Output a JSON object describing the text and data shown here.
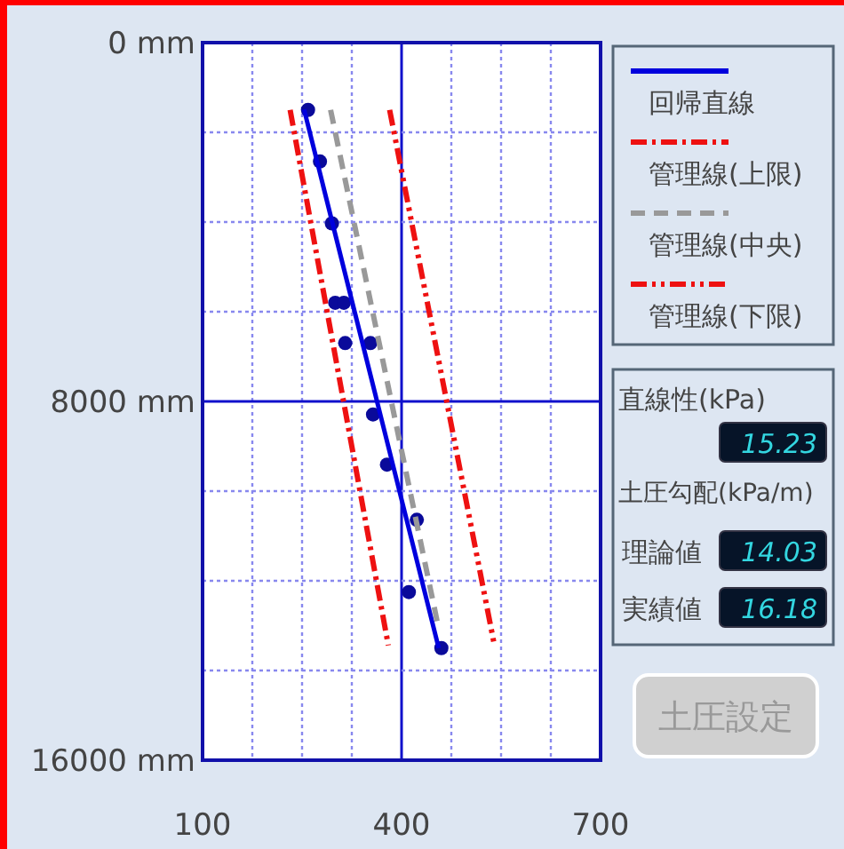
{
  "chart_data": {
    "type": "scatter",
    "xlim": [
      100,
      700
    ],
    "ylim": [
      16000,
      0
    ],
    "xticks": [
      100,
      {
        "value": 175,
        "label": null
      },
      {
        "value": 250,
        "label": null
      },
      {
        "value": 325,
        "label": null
      },
      400,
      {
        "value": 475,
        "label": null
      },
      {
        "value": 550,
        "label": null
      },
      {
        "value": 625,
        "label": null
      },
      700
    ],
    "yticks": [
      {
        "value": 0,
        "label": "0 mm"
      },
      {
        "value": 2000,
        "label": null
      },
      {
        "value": 4000,
        "label": null
      },
      {
        "value": 6000,
        "label": null
      },
      {
        "value": 8000,
        "label": "8000 mm"
      },
      {
        "value": 10000,
        "label": null
      },
      {
        "value": 12000,
        "label": null
      },
      {
        "value": 14000,
        "label": null
      },
      {
        "value": 16000,
        "label": "16000 mm"
      }
    ],
    "grid": true,
    "legend": "right",
    "series": [
      {
        "marker": "circle",
        "color": "#0a0a9a",
        "x": [
          259,
          277,
          295,
          300,
          313,
          315,
          353,
          357,
          378,
          423,
          411,
          460
        ],
        "values": [
          1500,
          2650,
          4030,
          5800,
          5800,
          6700,
          6700,
          8290,
          9410,
          10640,
          12250,
          13500
        ]
      },
      {
        "type": "line",
        "name": "回帰直線",
        "color": "#0000dd",
        "line_style": "solid",
        "x": [
          253,
          456
        ],
        "values": [
          1490,
          13500
        ]
      },
      {
        "type": "line",
        "name": "管理線(上限)",
        "color": "#ee1111",
        "line_style": "dashdot",
        "x": [
          232,
          380
        ],
        "values": [
          1500,
          13440
        ]
      },
      {
        "type": "line",
        "name": "管理線(中央)",
        "color": "#999999",
        "line_style": "dashed",
        "x": [
          293,
          455
        ],
        "values": [
          1500,
          13000
        ]
      },
      {
        "type": "line",
        "name": "管理線(下限)",
        "color": "#ee1111",
        "line_style": "dashdotdot",
        "x": [
          382,
          540
        ],
        "values": [
          1500,
          13440
        ]
      }
    ],
    "annotations": [
      "直線性(kPa)",
      "15.23",
      "土圧勾配(kPa/m)",
      "理論値",
      "14.03",
      "実績値",
      "16.18",
      "土圧設定"
    ]
  }
}
